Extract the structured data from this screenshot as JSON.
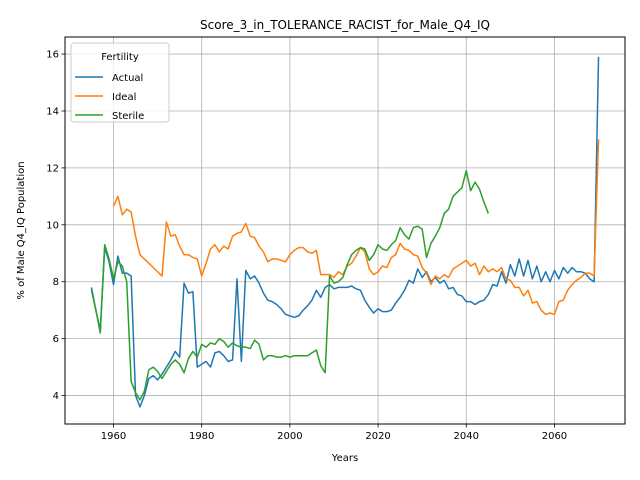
{
  "chart_data": {
    "type": "line",
    "title": "Score_3_in_TOLERANCE_RACIST_for_Male_Q4_IQ",
    "xlabel": "Years",
    "ylabel": "% of Male Q4_IQ Population",
    "xlim": [
      1949,
      2076
    ],
    "ylim": [
      3.0,
      16.6
    ],
    "xticks": [
      1960,
      1980,
      2000,
      2020,
      2040,
      2060
    ],
    "yticks": [
      4,
      6,
      8,
      10,
      12,
      14,
      16
    ],
    "grid": true,
    "legend": {
      "title": "Fertility",
      "placement": "top-left"
    },
    "series": [
      {
        "name": "Actual",
        "color": "#1f77b4",
        "points": [
          [
            1955,
            7.8
          ],
          [
            1956,
            7.0
          ],
          [
            1957,
            6.3
          ],
          [
            1958,
            9.2
          ],
          [
            1959,
            8.7
          ],
          [
            1960,
            7.9
          ],
          [
            1961,
            8.9
          ],
          [
            1962,
            8.3
          ],
          [
            1963,
            8.3
          ],
          [
            1964,
            8.2
          ],
          [
            1965,
            4.0
          ],
          [
            1966,
            3.6
          ],
          [
            1967,
            4.0
          ],
          [
            1968,
            4.6
          ],
          [
            1969,
            4.7
          ],
          [
            1970,
            4.55
          ],
          [
            1971,
            4.75
          ],
          [
            1972,
            5.0
          ],
          [
            1973,
            5.25
          ],
          [
            1974,
            5.55
          ],
          [
            1975,
            5.35
          ],
          [
            1976,
            7.95
          ],
          [
            1977,
            7.6
          ],
          [
            1978,
            7.65
          ],
          [
            1979,
            5.0
          ],
          [
            1980,
            5.1
          ],
          [
            1981,
            5.2
          ],
          [
            1982,
            5.0
          ],
          [
            1983,
            5.5
          ],
          [
            1984,
            5.55
          ],
          [
            1985,
            5.4
          ],
          [
            1986,
            5.2
          ],
          [
            1987,
            5.25
          ],
          [
            1988,
            8.1
          ],
          [
            1989,
            5.2
          ],
          [
            1990,
            8.4
          ],
          [
            1991,
            8.1
          ],
          [
            1992,
            8.2
          ],
          [
            1993,
            7.95
          ],
          [
            1994,
            7.6
          ],
          [
            1995,
            7.35
          ],
          [
            1996,
            7.3
          ],
          [
            1997,
            7.2
          ],
          [
            1998,
            7.05
          ],
          [
            1999,
            6.85
          ],
          [
            2000,
            6.8
          ],
          [
            2001,
            6.75
          ],
          [
            2002,
            6.8
          ],
          [
            2003,
            7.0
          ],
          [
            2004,
            7.15
          ],
          [
            2005,
            7.35
          ],
          [
            2006,
            7.7
          ],
          [
            2007,
            7.45
          ],
          [
            2008,
            7.8
          ],
          [
            2009,
            7.9
          ],
          [
            2010,
            7.75
          ],
          [
            2011,
            7.8
          ],
          [
            2012,
            7.8
          ],
          [
            2013,
            7.8
          ],
          [
            2014,
            7.85
          ],
          [
            2015,
            7.75
          ],
          [
            2016,
            7.7
          ],
          [
            2017,
            7.35
          ],
          [
            2018,
            7.1
          ],
          [
            2019,
            6.9
          ],
          [
            2020,
            7.05
          ],
          [
            2021,
            6.95
          ],
          [
            2022,
            6.95
          ],
          [
            2023,
            7.0
          ],
          [
            2024,
            7.25
          ],
          [
            2025,
            7.45
          ],
          [
            2026,
            7.7
          ],
          [
            2027,
            8.05
          ],
          [
            2028,
            7.95
          ],
          [
            2029,
            8.45
          ],
          [
            2030,
            8.15
          ],
          [
            2031,
            8.35
          ],
          [
            2032,
            8.0
          ],
          [
            2033,
            8.15
          ],
          [
            2034,
            7.95
          ],
          [
            2035,
            8.05
          ],
          [
            2036,
            7.75
          ],
          [
            2037,
            7.8
          ],
          [
            2038,
            7.55
          ],
          [
            2039,
            7.5
          ],
          [
            2040,
            7.3
          ],
          [
            2041,
            7.3
          ],
          [
            2042,
            7.2
          ],
          [
            2043,
            7.3
          ],
          [
            2044,
            7.35
          ],
          [
            2045,
            7.55
          ],
          [
            2046,
            7.9
          ],
          [
            2047,
            7.85
          ],
          [
            2048,
            8.35
          ],
          [
            2049,
            7.95
          ],
          [
            2050,
            8.6
          ],
          [
            2051,
            8.2
          ],
          [
            2052,
            8.8
          ],
          [
            2053,
            8.2
          ],
          [
            2054,
            8.75
          ],
          [
            2055,
            8.1
          ],
          [
            2056,
            8.55
          ],
          [
            2057,
            8.0
          ],
          [
            2058,
            8.35
          ],
          [
            2059,
            8.0
          ],
          [
            2060,
            8.4
          ],
          [
            2061,
            8.1
          ],
          [
            2062,
            8.5
          ],
          [
            2063,
            8.3
          ],
          [
            2064,
            8.5
          ],
          [
            2065,
            8.35
          ],
          [
            2066,
            8.35
          ],
          [
            2067,
            8.3
          ],
          [
            2068,
            8.1
          ],
          [
            2069,
            8.0
          ],
          [
            2070,
            15.9
          ]
        ]
      },
      {
        "name": "Ideal",
        "color": "#ff7f0e",
        "points": [
          [
            1960,
            10.65
          ],
          [
            1961,
            11.0
          ],
          [
            1962,
            10.35
          ],
          [
            1963,
            10.55
          ],
          [
            1964,
            10.45
          ],
          [
            1965,
            9.6
          ],
          [
            1966,
            8.95
          ],
          [
            1967,
            8.8
          ],
          [
            1968,
            8.65
          ],
          [
            1969,
            8.5
          ],
          [
            1970,
            8.35
          ],
          [
            1971,
            8.2
          ],
          [
            1972,
            10.1
          ],
          [
            1973,
            9.6
          ],
          [
            1974,
            9.65
          ],
          [
            1975,
            9.25
          ],
          [
            1976,
            8.95
          ],
          [
            1977,
            8.95
          ],
          [
            1978,
            8.85
          ],
          [
            1979,
            8.8
          ],
          [
            1980,
            8.2
          ],
          [
            1981,
            8.65
          ],
          [
            1982,
            9.15
          ],
          [
            1983,
            9.3
          ],
          [
            1984,
            9.05
          ],
          [
            1985,
            9.25
          ],
          [
            1986,
            9.15
          ],
          [
            1987,
            9.6
          ],
          [
            1988,
            9.7
          ],
          [
            1989,
            9.75
          ],
          [
            1990,
            10.05
          ],
          [
            1991,
            9.6
          ],
          [
            1992,
            9.55
          ],
          [
            1993,
            9.25
          ],
          [
            1994,
            9.05
          ],
          [
            1995,
            8.7
          ],
          [
            1996,
            8.8
          ],
          [
            1997,
            8.8
          ],
          [
            1998,
            8.75
          ],
          [
            1999,
            8.7
          ],
          [
            2000,
            8.95
          ],
          [
            2001,
            9.1
          ],
          [
            2002,
            9.2
          ],
          [
            2003,
            9.2
          ],
          [
            2004,
            9.05
          ],
          [
            2005,
            9.0
          ],
          [
            2006,
            9.1
          ],
          [
            2007,
            8.25
          ],
          [
            2008,
            8.25
          ],
          [
            2009,
            8.25
          ],
          [
            2010,
            8.15
          ],
          [
            2011,
            8.35
          ],
          [
            2012,
            8.25
          ],
          [
            2013,
            8.55
          ],
          [
            2014,
            8.65
          ],
          [
            2015,
            8.9
          ],
          [
            2016,
            9.2
          ],
          [
            2017,
            9.05
          ],
          [
            2018,
            8.45
          ],
          [
            2019,
            8.25
          ],
          [
            2020,
            8.35
          ],
          [
            2021,
            8.55
          ],
          [
            2022,
            8.5
          ],
          [
            2023,
            8.85
          ],
          [
            2024,
            8.95
          ],
          [
            2025,
            9.35
          ],
          [
            2026,
            9.15
          ],
          [
            2027,
            9.1
          ],
          [
            2028,
            8.95
          ],
          [
            2029,
            8.9
          ],
          [
            2030,
            8.5
          ],
          [
            2031,
            8.3
          ],
          [
            2032,
            7.9
          ],
          [
            2033,
            8.2
          ],
          [
            2034,
            8.1
          ],
          [
            2035,
            8.25
          ],
          [
            2036,
            8.15
          ],
          [
            2037,
            8.45
          ],
          [
            2038,
            8.55
          ],
          [
            2039,
            8.65
          ],
          [
            2040,
            8.75
          ],
          [
            2041,
            8.55
          ],
          [
            2042,
            8.65
          ],
          [
            2043,
            8.25
          ],
          [
            2044,
            8.55
          ],
          [
            2045,
            8.35
          ],
          [
            2046,
            8.45
          ],
          [
            2047,
            8.35
          ],
          [
            2048,
            8.5
          ],
          [
            2049,
            8.1
          ],
          [
            2050,
            8.05
          ],
          [
            2051,
            7.8
          ],
          [
            2052,
            7.8
          ],
          [
            2053,
            7.5
          ],
          [
            2054,
            7.7
          ],
          [
            2055,
            7.25
          ],
          [
            2056,
            7.3
          ],
          [
            2057,
            7.0
          ],
          [
            2058,
            6.85
          ],
          [
            2059,
            6.9
          ],
          [
            2060,
            6.85
          ],
          [
            2061,
            7.3
          ],
          [
            2062,
            7.35
          ],
          [
            2063,
            7.7
          ],
          [
            2064,
            7.9
          ],
          [
            2065,
            8.05
          ],
          [
            2066,
            8.15
          ],
          [
            2067,
            8.3
          ],
          [
            2068,
            8.3
          ],
          [
            2069,
            8.2
          ],
          [
            2070,
            13.0
          ]
        ]
      },
      {
        "name": "Sterile",
        "color": "#2ca02c",
        "points": [
          [
            1955,
            7.7
          ],
          [
            1956,
            7.0
          ],
          [
            1957,
            6.2
          ],
          [
            1958,
            9.3
          ],
          [
            1959,
            8.8
          ],
          [
            1960,
            8.1
          ],
          [
            1961,
            8.7
          ],
          [
            1962,
            8.55
          ],
          [
            1963,
            8.0
          ],
          [
            1964,
            4.5
          ],
          [
            1965,
            4.1
          ],
          [
            1966,
            3.85
          ],
          [
            1967,
            4.15
          ],
          [
            1968,
            4.9
          ],
          [
            1969,
            5.0
          ],
          [
            1970,
            4.85
          ],
          [
            1971,
            4.6
          ],
          [
            1972,
            4.85
          ],
          [
            1973,
            5.1
          ],
          [
            1974,
            5.25
          ],
          [
            1975,
            5.1
          ],
          [
            1976,
            4.8
          ],
          [
            1977,
            5.3
          ],
          [
            1978,
            5.55
          ],
          [
            1979,
            5.35
          ],
          [
            1980,
            5.8
          ],
          [
            1981,
            5.7
          ],
          [
            1982,
            5.85
          ],
          [
            1983,
            5.8
          ],
          [
            1984,
            6.0
          ],
          [
            1985,
            5.9
          ],
          [
            1986,
            5.7
          ],
          [
            1987,
            5.85
          ],
          [
            1988,
            5.75
          ],
          [
            1989,
            5.7
          ],
          [
            1990,
            5.7
          ],
          [
            1991,
            5.65
          ],
          [
            1992,
            5.95
          ],
          [
            1993,
            5.8
          ],
          [
            1994,
            5.25
          ],
          [
            1995,
            5.4
          ],
          [
            1996,
            5.4
          ],
          [
            1997,
            5.35
          ],
          [
            1998,
            5.35
          ],
          [
            1999,
            5.4
          ],
          [
            2000,
            5.35
          ],
          [
            2001,
            5.4
          ],
          [
            2002,
            5.4
          ],
          [
            2003,
            5.4
          ],
          [
            2004,
            5.4
          ],
          [
            2005,
            5.5
          ],
          [
            2006,
            5.6
          ],
          [
            2007,
            5.05
          ],
          [
            2008,
            4.8
          ],
          [
            2009,
            8.2
          ],
          [
            2010,
            7.95
          ],
          [
            2011,
            8.0
          ],
          [
            2012,
            8.15
          ],
          [
            2013,
            8.6
          ],
          [
            2014,
            8.95
          ],
          [
            2015,
            9.1
          ],
          [
            2016,
            9.2
          ],
          [
            2017,
            9.15
          ],
          [
            2018,
            8.75
          ],
          [
            2019,
            8.95
          ],
          [
            2020,
            9.3
          ],
          [
            2021,
            9.15
          ],
          [
            2022,
            9.1
          ],
          [
            2023,
            9.3
          ],
          [
            2024,
            9.45
          ],
          [
            2025,
            9.9
          ],
          [
            2026,
            9.65
          ],
          [
            2027,
            9.5
          ],
          [
            2028,
            9.9
          ],
          [
            2029,
            9.95
          ],
          [
            2030,
            9.85
          ],
          [
            2031,
            8.85
          ],
          [
            2032,
            9.35
          ],
          [
            2033,
            9.6
          ],
          [
            2034,
            9.9
          ],
          [
            2035,
            10.4
          ],
          [
            2036,
            10.55
          ],
          [
            2037,
            11.0
          ],
          [
            2038,
            11.15
          ],
          [
            2039,
            11.3
          ],
          [
            2040,
            11.9
          ],
          [
            2041,
            11.2
          ],
          [
            2042,
            11.5
          ],
          [
            2043,
            11.25
          ],
          [
            2044,
            10.8
          ],
          [
            2045,
            10.4
          ]
        ]
      }
    ]
  }
}
